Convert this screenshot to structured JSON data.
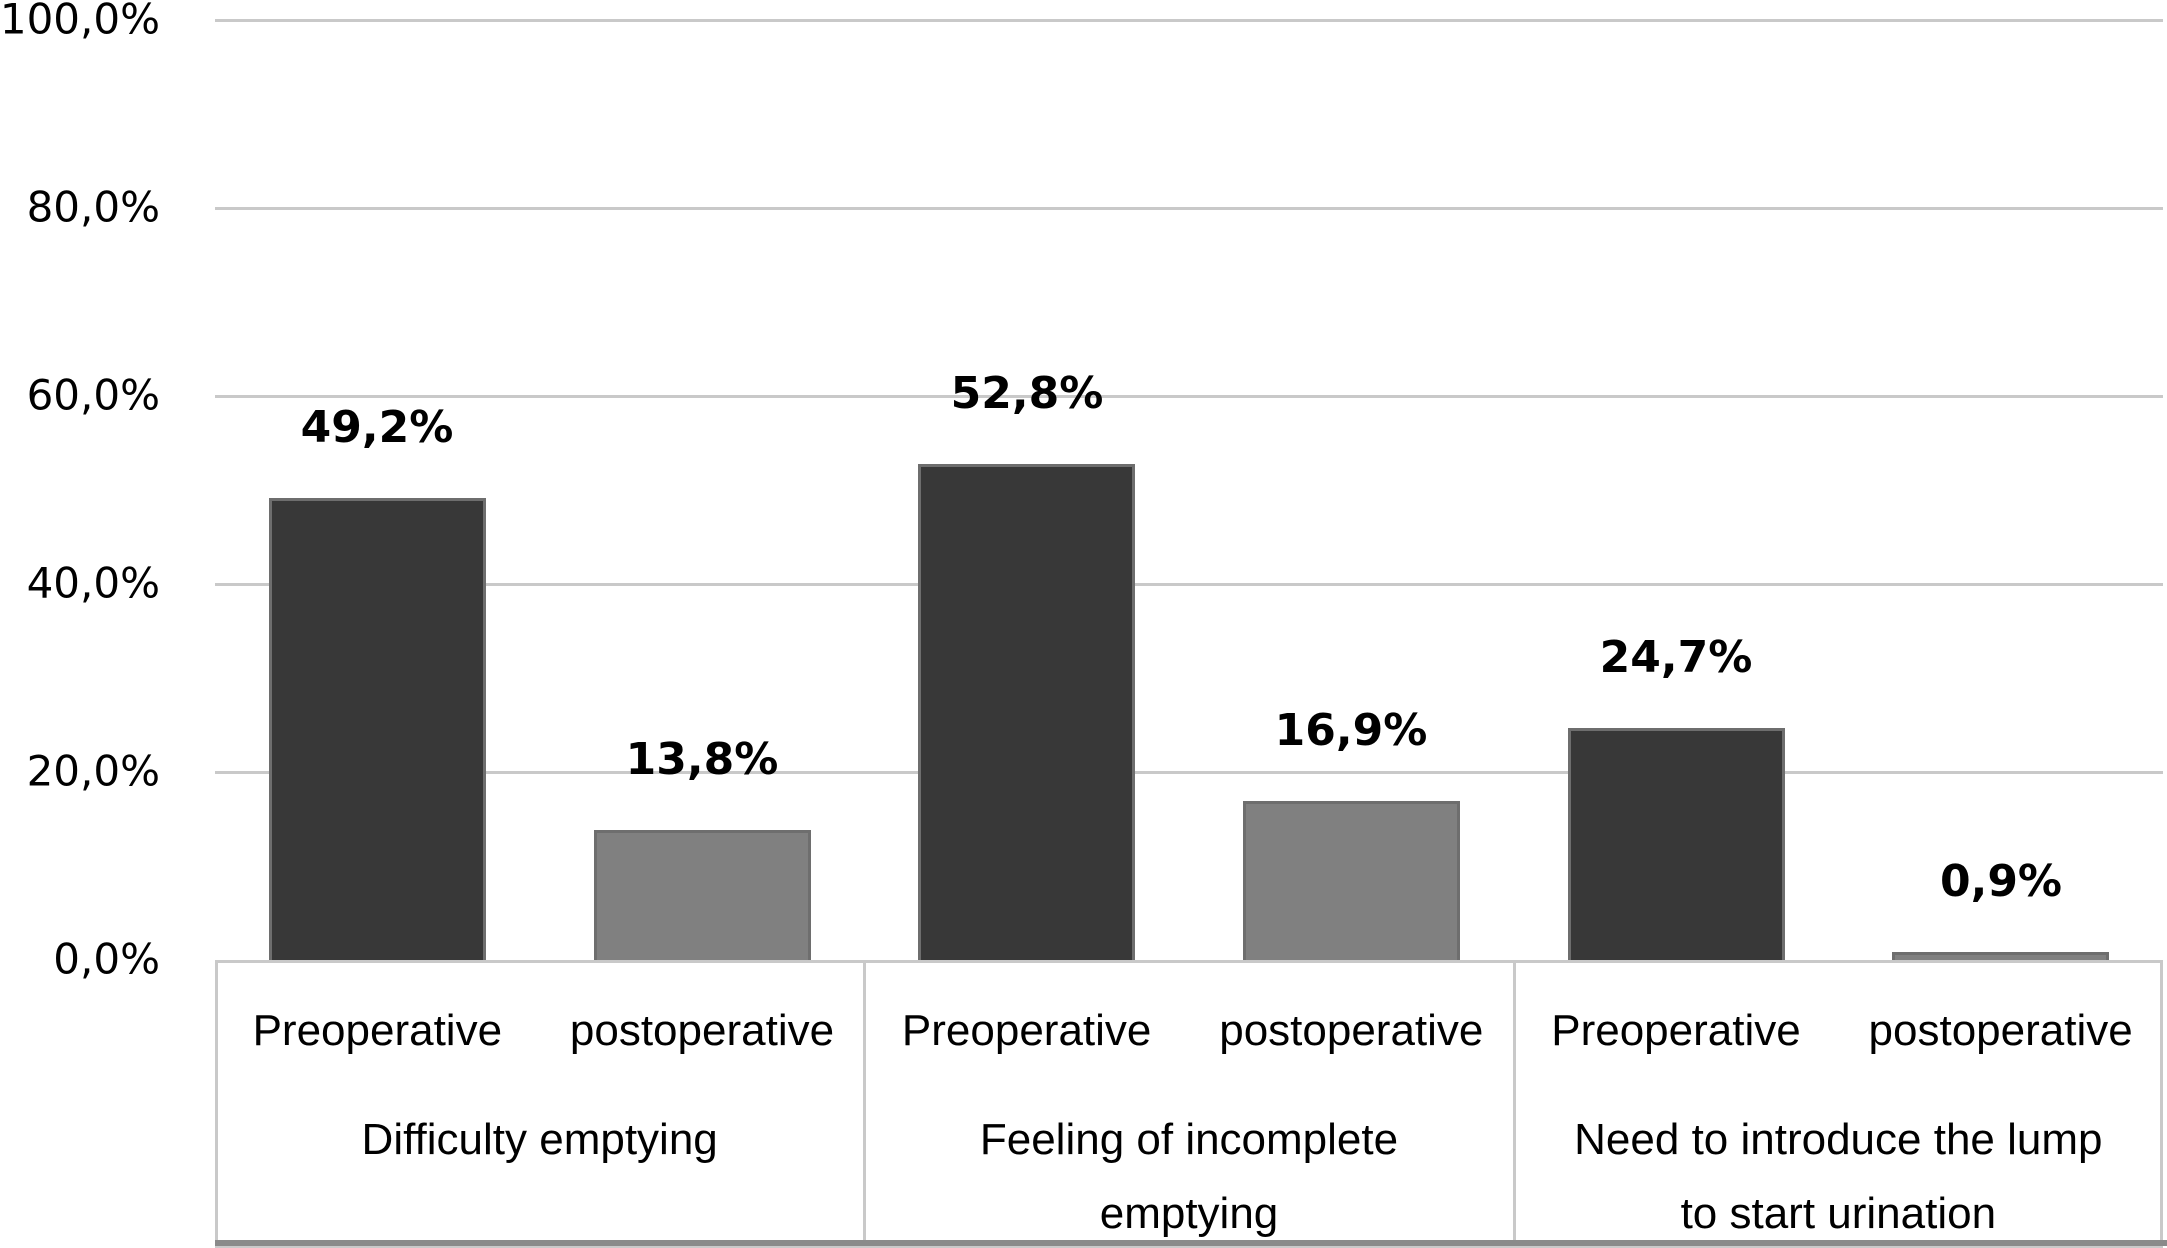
{
  "figure": {
    "background": "#ffffff"
  },
  "chart_data": {
    "type": "bar",
    "title": "",
    "xlabel": "",
    "ylabel": "",
    "ylim": [
      0,
      100
    ],
    "grid": true,
    "legend_position": "none",
    "decimal_separator": ",",
    "value_suffix": "%",
    "y_ticks": [
      {
        "value": 100,
        "label": "100,0%"
      },
      {
        "value": 80,
        "label": "80,0%"
      },
      {
        "value": 60,
        "label": "60,0%"
      },
      {
        "value": 40,
        "label": "40,0%"
      },
      {
        "value": 20,
        "label": "20,0%"
      },
      {
        "value": 0,
        "label": "0,0%"
      }
    ],
    "series": [
      {
        "name": "Preoperative",
        "color": "#383838"
      },
      {
        "name": "postoperative",
        "color": "#808080"
      }
    ],
    "groups": [
      {
        "category": "Difficulty emptying",
        "category_lines": "Difficulty emptying",
        "bars": [
          {
            "series": "Preoperative",
            "value": 49.2,
            "label": "49,2%"
          },
          {
            "series": "postoperative",
            "value": 13.8,
            "label": "13,8%"
          }
        ]
      },
      {
        "category": "Feeling of incomplete emptying",
        "category_lines": "Feeling of incomplete\nemptying",
        "bars": [
          {
            "series": "Preoperative",
            "value": 52.8,
            "label": "52,8%"
          },
          {
            "series": "postoperative",
            "value": 16.9,
            "label": "16,9%"
          }
        ]
      },
      {
        "category": "Need to introduce the lump to start urination",
        "category_lines": "Need to introduce the lump\nto start urination",
        "bars": [
          {
            "series": "Preoperative",
            "value": 24.7,
            "label": "24,7%"
          },
          {
            "series": "postoperative",
            "value": 0.9,
            "label": "0,9%"
          }
        ]
      }
    ],
    "colors": {
      "bar_preoperative": "#383838",
      "bar_postoperative": "#808080",
      "bar_border": "#6e6e6e",
      "gridline": "#c9c9c9",
      "box_border": "#c9c9c9",
      "bottom_rule": "#8a8a8a",
      "text": "#000000"
    }
  }
}
